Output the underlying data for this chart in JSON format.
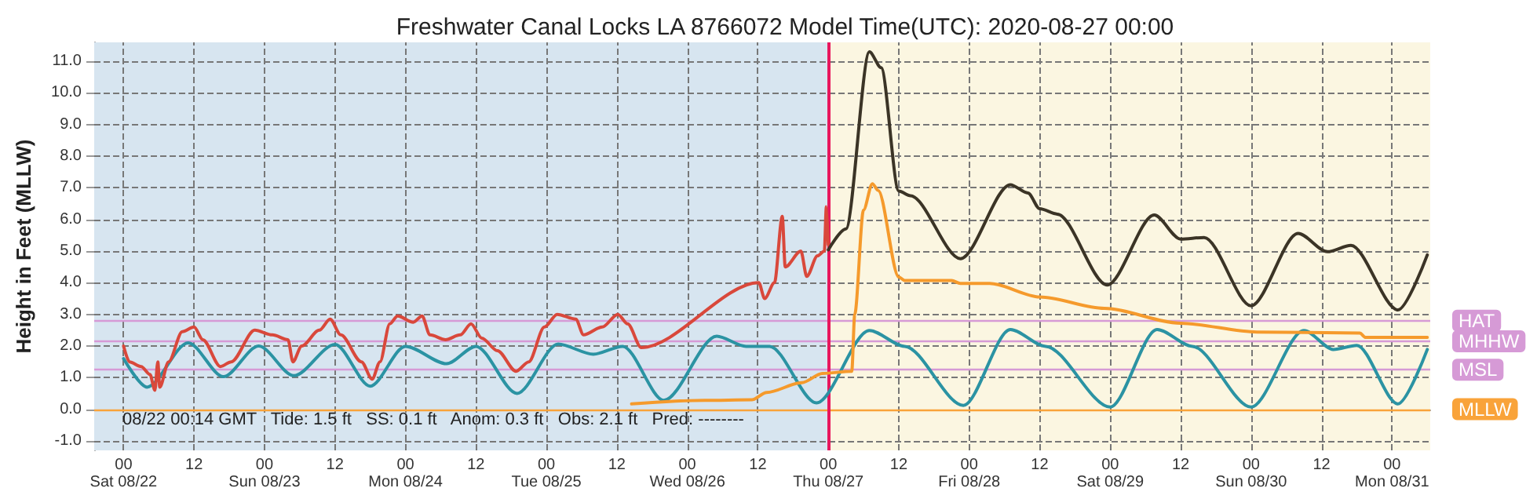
{
  "chart_data": {
    "type": "line",
    "title": "Freshwater Canal Locks LA 8766072 Model Time(UTC): 2020-08-27 00:00",
    "ylabel": "Height in Feet (MLLW)",
    "xlim": [
      "2020-08-21T19:00",
      "2020-08-31T06:30"
    ],
    "xticks": [
      {
        "value": "2020-08-22T00:00",
        "label": "00\nSat 08/22"
      },
      {
        "value": "2020-08-22T12:00",
        "label": "12"
      },
      {
        "value": "2020-08-23T00:00",
        "label": "00\nSun 08/23"
      },
      {
        "value": "2020-08-23T12:00",
        "label": "12"
      },
      {
        "value": "2020-08-24T00:00",
        "label": "00\nMon 08/24"
      },
      {
        "value": "2020-08-24T12:00",
        "label": "12"
      },
      {
        "value": "2020-08-25T00:00",
        "label": "00\nTue 08/25"
      },
      {
        "value": "2020-08-25T12:00",
        "label": "12"
      },
      {
        "value": "2020-08-26T00:00",
        "label": "00\nWed 08/26"
      },
      {
        "value": "2020-08-26T12:00",
        "label": "12"
      },
      {
        "value": "2020-08-27T00:00",
        "label": "00\nThu 08/27"
      },
      {
        "value": "2020-08-27T12:00",
        "label": "12"
      },
      {
        "value": "2020-08-28T00:00",
        "label": "00\nFri 08/28"
      },
      {
        "value": "2020-08-28T12:00",
        "label": "12"
      },
      {
        "value": "2020-08-29T00:00",
        "label": "00\nSat 08/29"
      },
      {
        "value": "2020-08-29T12:00",
        "label": "12"
      },
      {
        "value": "2020-08-30T00:00",
        "label": "00\nSun 08/30"
      },
      {
        "value": "2020-08-30T12:00",
        "label": "12"
      },
      {
        "value": "2020-08-31T00:00",
        "label": "00\nMon 08/31"
      }
    ],
    "ylim": [
      -1.3,
      11.6
    ],
    "yticks": [
      {
        "value": -1,
        "label": "-1.0"
      },
      {
        "value": 0,
        "label": "0.0"
      },
      {
        "value": 1,
        "label": "1.0"
      },
      {
        "value": 2,
        "label": "2.0"
      },
      {
        "value": 3,
        "label": "3.0"
      },
      {
        "value": 4,
        "label": "4.0"
      },
      {
        "value": 5,
        "label": "5.0"
      },
      {
        "value": 6,
        "label": "6.0"
      },
      {
        "value": 7,
        "label": "7.0"
      },
      {
        "value": 8,
        "label": "8.0"
      },
      {
        "value": 9,
        "label": "9.0"
      },
      {
        "value": 10,
        "label": "10.0"
      },
      {
        "value": 11,
        "label": "11.0"
      }
    ],
    "grid": true,
    "legend": false,
    "marker": "none",
    "line_style": "solid",
    "bands": [
      {
        "axis": "x",
        "from": "2020-08-21T19:00",
        "to": "2020-08-27T00:00",
        "color": "#d7e5f0"
      },
      {
        "axis": "x",
        "from": "2020-08-27T00:00",
        "to": "2020-08-31T06:30",
        "color": "#fbf6e1"
      }
    ],
    "ref_lines": [
      {
        "axis": "y",
        "value": 2.8,
        "label": "HAT",
        "color": "#d69ad6"
      },
      {
        "axis": "y",
        "value": 2.15,
        "label": "MHHW",
        "color": "#d69ad6"
      },
      {
        "axis": "y",
        "value": 1.25,
        "label": "MSL",
        "color": "#d69ad6"
      },
      {
        "axis": "y",
        "value": 0,
        "label": "MLLW",
        "color": "#f9a33a"
      },
      {
        "axis": "x",
        "value": "2020-08-27T00:00",
        "color": "#e8175d"
      }
    ],
    "annotations": [
      "08/22 00:14 GMT   Tide: 1.5 ft   SS: 0.1 ft   Anom: 0.3 ft   Obs: 2.1 ft   Pred: --------"
    ],
    "series": [
      {
        "color": "#2b93a3",
        "x": [
          "2020-08-22T00:00",
          "2020-08-22T04:00",
          "2020-08-22T11:00",
          "2020-08-22T17:00",
          "2020-08-22T23:00",
          "2020-08-23T05:00",
          "2020-08-23T12:00",
          "2020-08-23T18:00",
          "2020-08-24T00:00",
          "2020-08-24T07:00",
          "2020-08-24T12:00",
          "2020-08-24T19:00",
          "2020-08-25T02:00",
          "2020-08-25T08:00",
          "2020-08-25T13:00",
          "2020-08-25T20:00",
          "2020-08-26T05:00",
          "2020-08-26T10:00",
          "2020-08-26T14:00",
          "2020-08-26T22:00",
          "2020-08-27T07:00",
          "2020-08-27T13:00",
          "2020-08-27T23:00",
          "2020-08-28T07:00",
          "2020-08-28T13:00",
          "2020-08-29T00:00",
          "2020-08-29T08:00",
          "2020-08-29T14:00",
          "2020-08-30T00:00",
          "2020-08-30T09:00",
          "2020-08-30T14:00",
          "2020-08-30T18:00",
          "2020-08-31T01:00",
          "2020-08-31T06:00"
        ],
        "values": [
          1.6,
          0.7,
          2.1,
          1.03,
          2.0,
          1.06,
          2.05,
          0.73,
          1.99,
          1.44,
          1.99,
          0.5,
          2.06,
          1.74,
          1.99,
          0.28,
          2.31,
          1.99,
          1.99,
          0.2,
          2.49,
          1.99,
          0.12,
          2.52,
          1.99,
          0.07,
          2.52,
          1.99,
          0.07,
          2.49,
          1.89,
          2.02,
          0.17,
          1.89
        ]
      },
      {
        "color": "#d9483b",
        "x": [
          "2020-08-22T00:00",
          "2020-08-22T01:00",
          "2020-08-22T03:00",
          "2020-08-22T04:30",
          "2020-08-22T05:20",
          "2020-08-22T05:50",
          "2020-08-22T06:10",
          "2020-08-22T07:40",
          "2020-08-22T10:00",
          "2020-08-22T12:00",
          "2020-08-22T13:30",
          "2020-08-22T16:30",
          "2020-08-22T18:20",
          "2020-08-22T22:20",
          "2020-08-23T01:20",
          "2020-08-23T04:00",
          "2020-08-23T04:50",
          "2020-08-23T06:20",
          "2020-08-23T09:20",
          "2020-08-23T11:10",
          "2020-08-23T13:00",
          "2020-08-23T16:30",
          "2020-08-23T18:20",
          "2020-08-23T19:40",
          "2020-08-23T21:20",
          "2020-08-23T22:40",
          "2020-08-24T01:20",
          "2020-08-24T02:50",
          "2020-08-24T04:10",
          "2020-08-24T06:50",
          "2020-08-24T09:20",
          "2020-08-24T11:10",
          "2020-08-24T13:00",
          "2020-08-24T15:40",
          "2020-08-24T18:50",
          "2020-08-24T21:00",
          "2020-08-24T23:40",
          "2020-08-25T01:50",
          "2020-08-25T05:00",
          "2020-08-25T06:20",
          "2020-08-25T09:30",
          "2020-08-25T12:10",
          "2020-08-25T13:50",
          "2020-08-25T16:10",
          "2020-08-26T12:10",
          "2020-08-26T13:10",
          "2020-08-26T14:50",
          "2020-08-26T16:10",
          "2020-08-26T16:40",
          "2020-08-26T19:20",
          "2020-08-26T20:20",
          "2020-08-26T22:10",
          "2020-08-26T23:20",
          "2020-08-26T23:40",
          "2020-08-27T00:00"
        ],
        "values": [
          2.0,
          1.5,
          1.35,
          1.1,
          0.6,
          1.5,
          0.7,
          1.5,
          2.45,
          2.6,
          2.2,
          1.35,
          1.5,
          2.5,
          2.35,
          2.2,
          1.5,
          2.0,
          2.5,
          2.85,
          2.35,
          1.5,
          0.95,
          1.5,
          2.7,
          2.95,
          2.75,
          2.95,
          2.35,
          2.2,
          2.35,
          2.7,
          2.25,
          1.85,
          1.2,
          1.5,
          2.6,
          3.0,
          2.85,
          2.35,
          2.6,
          3.0,
          2.7,
          1.95,
          4.0,
          3.5,
          4.0,
          6.1,
          4.5,
          5.0,
          4.2,
          4.85,
          5.0,
          6.4,
          5.2
        ]
      },
      {
        "color": "#f59a2c",
        "x": [
          "2020-08-25T14:30",
          "2020-08-26T03:00",
          "2020-08-26T11:00",
          "2020-08-26T13:30",
          "2020-08-26T19:30",
          "2020-08-26T23:00",
          "2020-08-27T04:00",
          "2020-08-27T04:30",
          "2020-08-27T06:00",
          "2020-08-27T07:30",
          "2020-08-27T08:30",
          "2020-08-27T12:00",
          "2020-08-27T13:00",
          "2020-08-27T21:00",
          "2020-08-27T22:30",
          "2020-08-28T03:30",
          "2020-08-28T12:00",
          "2020-08-28T23:00",
          "2020-08-29T12:00",
          "2020-08-30T01:00",
          "2020-08-30T18:30",
          "2020-08-30T19:30",
          "2020-08-31T06:00"
        ],
        "values": [
          0.17,
          0.28,
          0.3,
          0.53,
          0.84,
          1.13,
          1.2,
          3.0,
          6.3,
          7.13,
          6.92,
          4.18,
          4.07,
          4.07,
          3.98,
          3.98,
          3.55,
          3.19,
          2.72,
          2.44,
          2.41,
          2.27,
          2.27
        ]
      },
      {
        "color": "#3b3426",
        "x": [
          "2020-08-27T00:00",
          "2020-08-27T03:00",
          "2020-08-27T07:00",
          "2020-08-27T09:00",
          "2020-08-27T12:00",
          "2020-08-27T14:00",
          "2020-08-27T22:30",
          "2020-08-28T07:00",
          "2020-08-28T10:00",
          "2020-08-28T12:00",
          "2020-08-28T15:00",
          "2020-08-28T23:30",
          "2020-08-29T07:30",
          "2020-08-29T12:00",
          "2020-08-29T16:00",
          "2020-08-30T00:00",
          "2020-08-30T08:00",
          "2020-08-30T13:00",
          "2020-08-30T17:00",
          "2020-08-31T01:00",
          "2020-08-31T06:00"
        ],
        "values": [
          5.04,
          5.7,
          11.3,
          10.8,
          6.9,
          6.75,
          4.76,
          7.1,
          6.84,
          6.34,
          6.17,
          3.93,
          6.14,
          5.38,
          5.43,
          3.27,
          5.56,
          4.98,
          5.18,
          3.14,
          4.88
        ]
      }
    ]
  }
}
